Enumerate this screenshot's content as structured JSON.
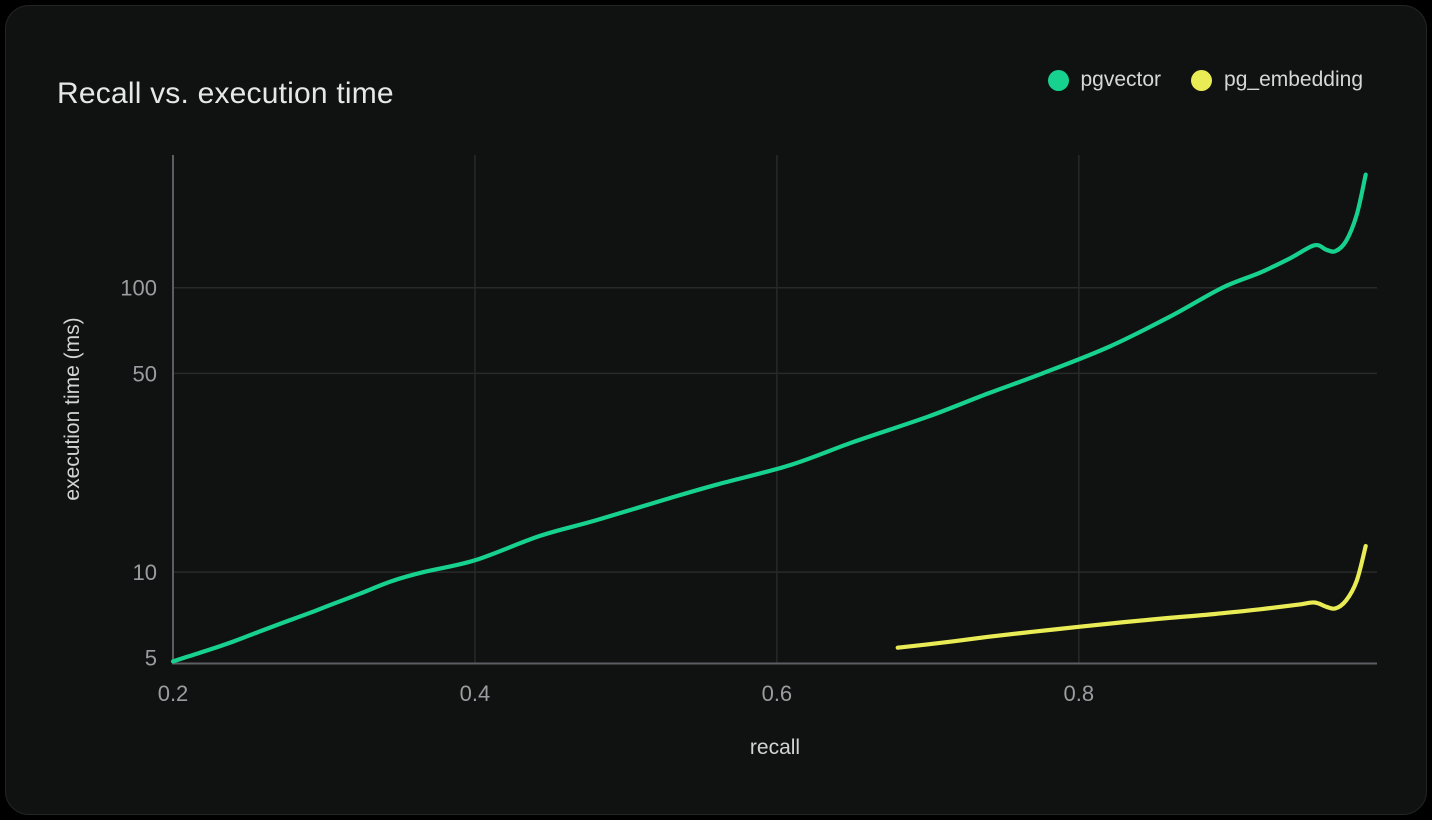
{
  "card": {
    "title": "Recall vs. execution time"
  },
  "legend": [
    {
      "label": "pgvector",
      "color": "#17d28f"
    },
    {
      "label": "pg_embedding",
      "color": "#e9ec55"
    }
  ],
  "colors": {
    "background": "#000000",
    "card": "#101111",
    "grid": "#28292b",
    "axis": "#5b5f64",
    "tick_text": "#9a9da0",
    "label_text": "#d2d4d4",
    "title_text": "#e6e7e7",
    "legend_text": "#d6d8d8",
    "pgvector": "#17d28f",
    "pg_embedding": "#e9ec55"
  },
  "chart_data": {
    "type": "line",
    "title": "Recall vs. execution time",
    "xlabel": "recall",
    "ylabel": "execution time (ms)",
    "x_scale": "linear",
    "y_scale": "log",
    "xlim": [
      0.2,
      0.9975
    ],
    "ylim": [
      4.77,
      293
    ],
    "x_ticks": [
      {
        "value": 0.2,
        "label": "0.2"
      },
      {
        "value": 0.4,
        "label": "0.4"
      },
      {
        "value": 0.6,
        "label": "0.6"
      },
      {
        "value": 0.8,
        "label": "0.8"
      }
    ],
    "y_ticks": [
      {
        "value": 5,
        "label": "5"
      },
      {
        "value": 10,
        "label": "10"
      },
      {
        "value": 50,
        "label": "50"
      },
      {
        "value": 100,
        "label": "100"
      }
    ],
    "x_gridlines": [
      0.4,
      0.6,
      0.8
    ],
    "y_gridlines": [
      10,
      50,
      100
    ],
    "grid": true,
    "legend_position": "top-right",
    "series": [
      {
        "name": "pgvector",
        "color": "#17d28f",
        "points": [
          [
            0.2,
            4.85
          ],
          [
            0.21,
            5.05
          ],
          [
            0.225,
            5.35
          ],
          [
            0.24,
            5.7
          ],
          [
            0.258,
            6.2
          ],
          [
            0.275,
            6.7
          ],
          [
            0.291,
            7.2
          ],
          [
            0.308,
            7.8
          ],
          [
            0.324,
            8.4
          ],
          [
            0.345,
            9.3
          ],
          [
            0.366,
            10.0
          ],
          [
            0.4,
            11.0
          ],
          [
            0.443,
            13.4
          ],
          [
            0.48,
            15.2
          ],
          [
            0.526,
            18.0
          ],
          [
            0.56,
            20.3
          ],
          [
            0.609,
            23.8
          ],
          [
            0.65,
            28.6
          ],
          [
            0.7,
            35.2
          ],
          [
            0.74,
            42.5
          ],
          [
            0.776,
            50.0
          ],
          [
            0.82,
            62.0
          ],
          [
            0.86,
            79.0
          ],
          [
            0.895,
            100.0
          ],
          [
            0.92,
            113.0
          ],
          [
            0.94,
            127.0
          ],
          [
            0.956,
            141.0
          ],
          [
            0.964,
            136.0
          ],
          [
            0.97,
            134.5
          ],
          [
            0.977,
            146.0
          ],
          [
            0.984,
            180.0
          ],
          [
            0.99,
            250.0
          ]
        ]
      },
      {
        "name": "pg_embedding",
        "color": "#e9ec55",
        "points": [
          [
            0.68,
            5.42
          ],
          [
            0.71,
            5.65
          ],
          [
            0.74,
            5.92
          ],
          [
            0.77,
            6.17
          ],
          [
            0.8,
            6.42
          ],
          [
            0.83,
            6.67
          ],
          [
            0.86,
            6.9
          ],
          [
            0.89,
            7.12
          ],
          [
            0.92,
            7.4
          ],
          [
            0.945,
            7.68
          ],
          [
            0.956,
            7.82
          ],
          [
            0.964,
            7.55
          ],
          [
            0.97,
            7.45
          ],
          [
            0.977,
            7.95
          ],
          [
            0.984,
            9.3
          ],
          [
            0.99,
            12.35
          ]
        ]
      }
    ]
  }
}
